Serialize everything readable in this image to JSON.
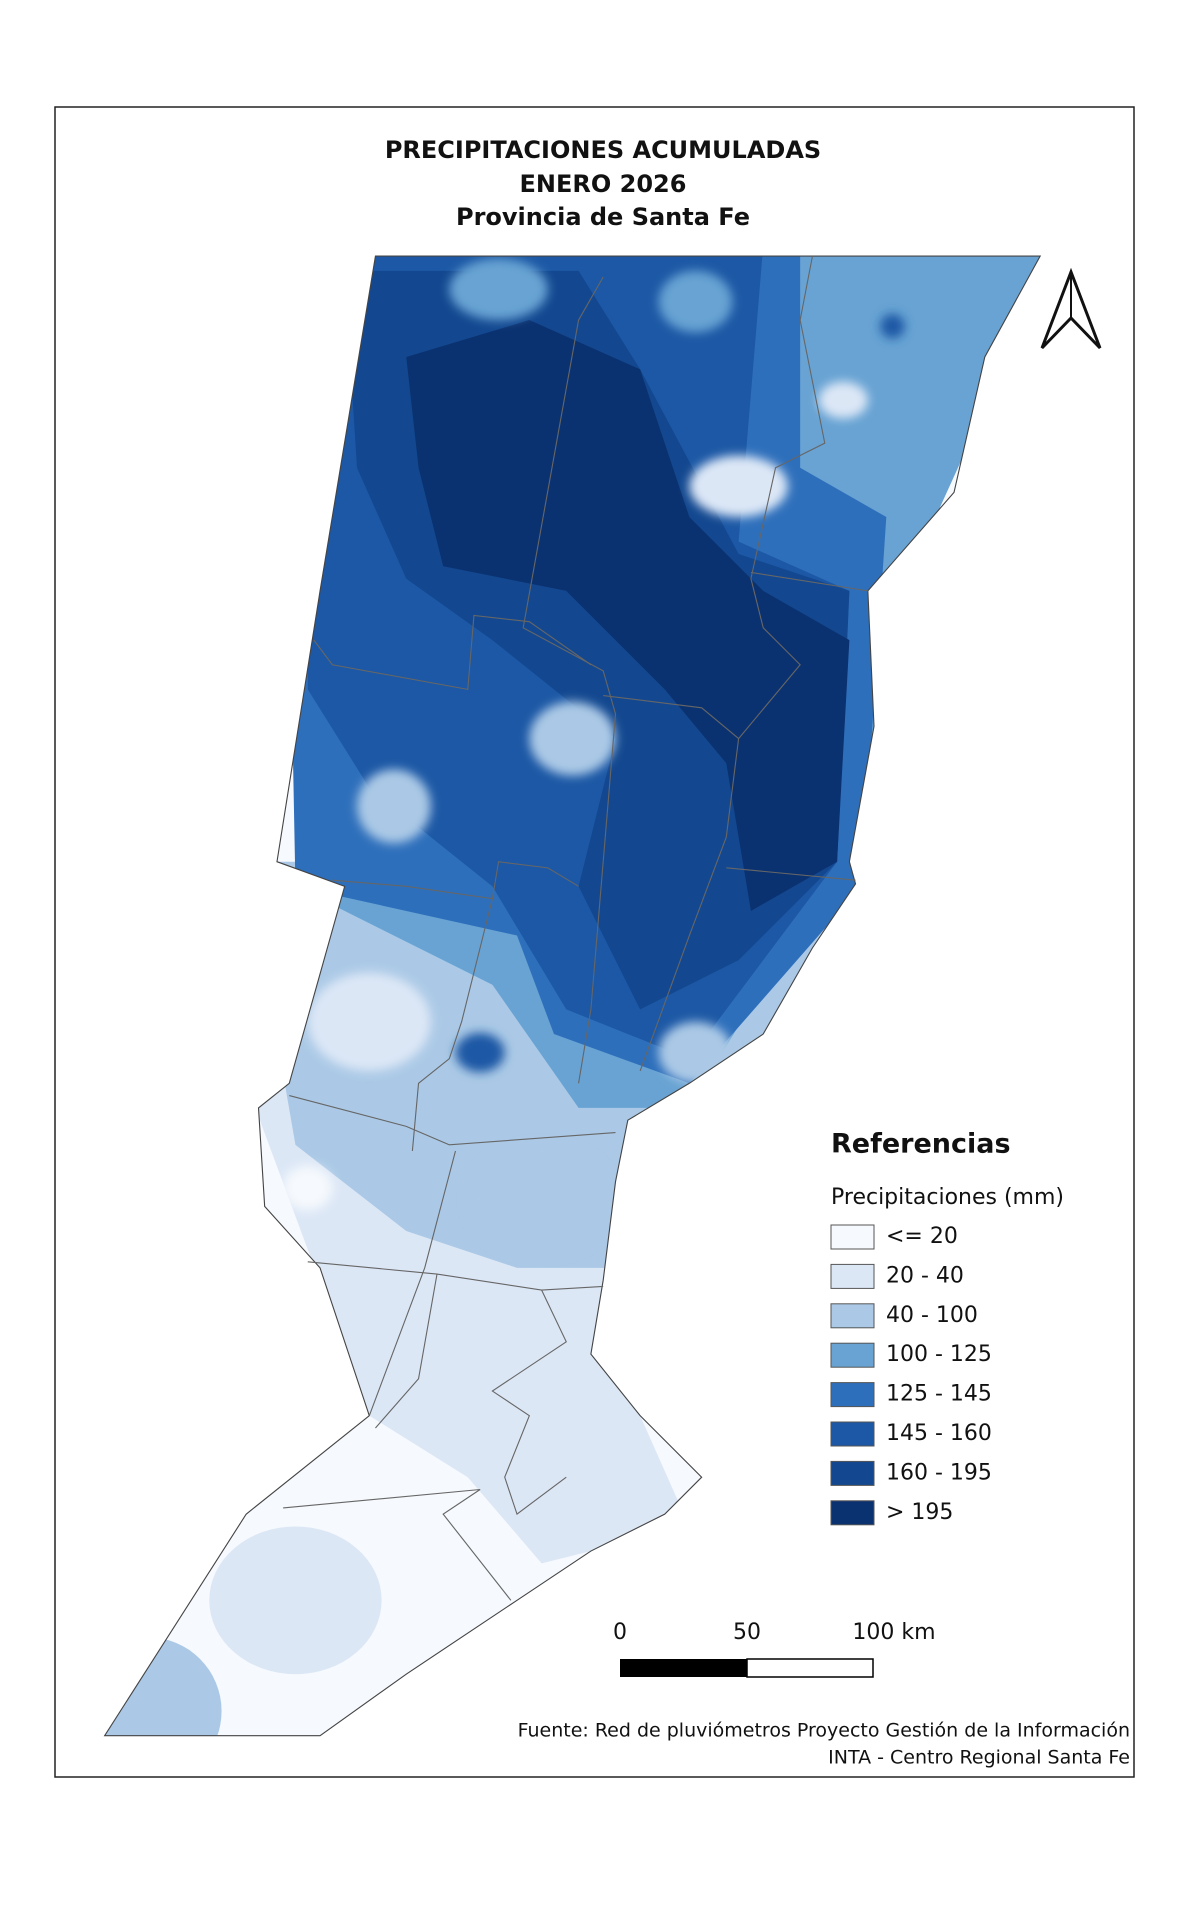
{
  "title": [
    "PRECIPITACIONES ACUMULADAS",
    "ENERO 2026",
    "Provincia de Santa Fe"
  ],
  "legend": {
    "title": "Referencias",
    "subtitle": "Precipitaciones (mm)",
    "items": [
      {
        "label": "<= 20",
        "color": "#f6f9fd"
      },
      {
        "label": "20 - 40",
        "color": "#dce7f6"
      },
      {
        "label": "40 - 100",
        "color": "#abc9e6"
      },
      {
        "label": "100 - 125",
        "color": "#68a3d3"
      },
      {
        "label": "125 - 145",
        "color": "#2e6fbb"
      },
      {
        "label": "145 - 160",
        "color": "#1c58a5"
      },
      {
        "label": "160 - 195",
        "color": "#134890"
      },
      {
        "label": "> 195",
        "color": "#0b3270"
      }
    ]
  },
  "scale_bar": [
    "0",
    "50",
    "100 km"
  ],
  "source": [
    "Fuente: Red de pluviómetros Proyecto Gestión de la Información",
    "INTA - Centro Regional Santa Fe"
  ]
}
